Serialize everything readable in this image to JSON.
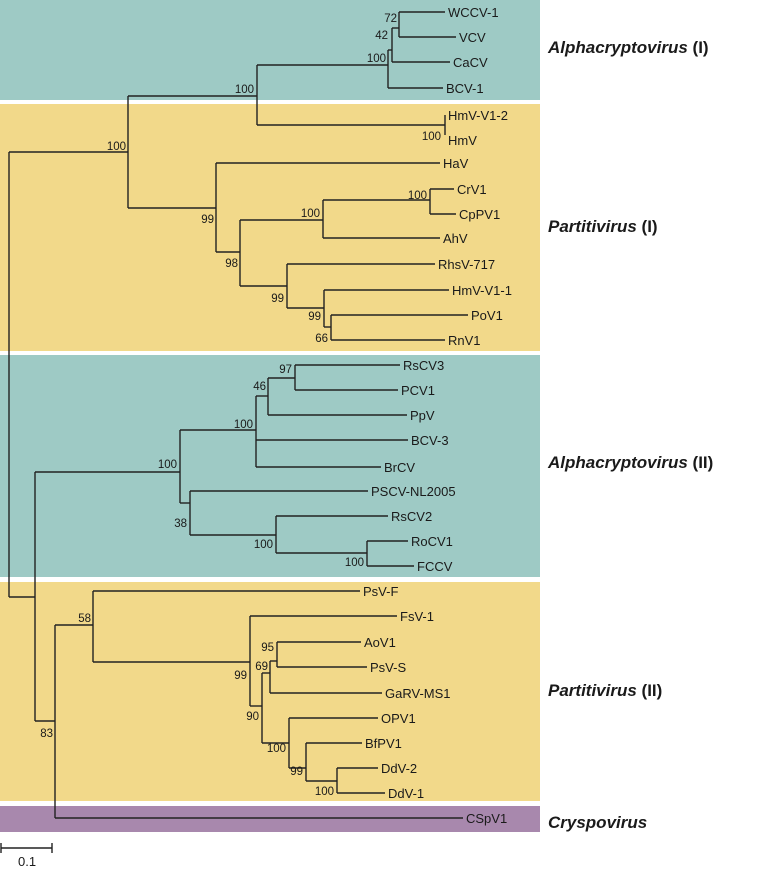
{
  "colors": {
    "alphacryptovirus": "#9ecac5",
    "partitivirus": "#f2d98a",
    "cryspovirus": "#a888ad"
  },
  "clades": [
    {
      "genus": "Alphacryptovirus",
      "suffix": " (I)"
    },
    {
      "genus": "Partitivirus",
      "suffix": " (I)"
    },
    {
      "genus": "Alphacryptovirus",
      "suffix": " (II)"
    },
    {
      "genus": "Partitivirus",
      "suffix": " (II)"
    },
    {
      "genus": "Cryspovirus",
      "suffix": ""
    }
  ],
  "tree": {
    "leaves": [
      "WCCV-1",
      "VCV",
      "CaCV",
      "BCV-1",
      "HmV-V1-2",
      "HmV",
      "HaV",
      "CrV1",
      "CpPV1",
      "AhV",
      "RhsV-717",
      "HmV-V1-1",
      "PoV1",
      "RnV1",
      "RsCV3",
      "PCV1",
      "PpV",
      "BCV-3",
      "BrCV",
      "PSCV-NL2005",
      "RsCV2",
      "RoCV1",
      "FCCV",
      "PsV-F",
      "FsV-1",
      "AoV1",
      "PsV-S",
      "GaRV-MS1",
      "OPV1",
      "BfPV1",
      "DdV-2",
      "DdV-1",
      "CSpV1"
    ],
    "bootstrap": [
      "72",
      "42",
      "100",
      "100",
      "100",
      "100",
      "99",
      "100",
      "100",
      "98",
      "99",
      "99",
      "66",
      "97",
      "46",
      "100",
      "100",
      "38",
      "100",
      "100",
      "58",
      "99",
      "95",
      "69",
      "90",
      "100",
      "99",
      "100",
      "83"
    ]
  },
  "scale_bar": {
    "label": "0.1"
  }
}
